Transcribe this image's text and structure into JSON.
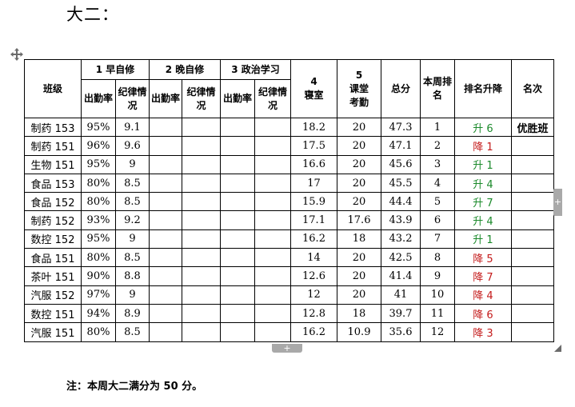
{
  "heading": "大二：",
  "headers": {
    "class": "班级",
    "group1": "1 早自修",
    "group2": "2 晚自修",
    "group3": "3 政治学习",
    "attendance_rate": "出勤率",
    "discipline": "纪律情况",
    "dorm": "4\n寝室",
    "classroom": "5\n课堂\n考勤",
    "total": "总分",
    "weekly_rank": "本周排名",
    "rank_change": "排名升降",
    "mingci": "名次"
  },
  "rows": [
    {
      "cls": "制药 153",
      "rate": "95%",
      "disc": "9.1",
      "dorm": "18.2",
      "classroom": "20",
      "total": "47.3",
      "rank": "1",
      "change": "升 6",
      "dir": "up",
      "mingci": "优胜班"
    },
    {
      "cls": "制药 151",
      "rate": "96%",
      "disc": "9.6",
      "dorm": "17.5",
      "classroom": "20",
      "total": "47.1",
      "rank": "2",
      "change": "降 1",
      "dir": "down",
      "mingci": ""
    },
    {
      "cls": "生物 151",
      "rate": "95%",
      "disc": "9",
      "dorm": "16.6",
      "classroom": "20",
      "total": "45.6",
      "rank": "3",
      "change": "升 1",
      "dir": "up",
      "mingci": ""
    },
    {
      "cls": "食品 153",
      "rate": "80%",
      "disc": "8.5",
      "dorm": "17",
      "classroom": "20",
      "total": "45.5",
      "rank": "4",
      "change": "升 4",
      "dir": "up",
      "mingci": ""
    },
    {
      "cls": "食品 152",
      "rate": "80%",
      "disc": "8.5",
      "dorm": "15.9",
      "classroom": "20",
      "total": "44.4",
      "rank": "5",
      "change": "升 7",
      "dir": "up",
      "mingci": ""
    },
    {
      "cls": "制药 152",
      "rate": "93%",
      "disc": "9.2",
      "dorm": "17.1",
      "classroom": "17.6",
      "total": "43.9",
      "rank": "6",
      "change": "升 4",
      "dir": "up",
      "mingci": ""
    },
    {
      "cls": "数控 152",
      "rate": "95%",
      "disc": "9",
      "dorm": "16.2",
      "classroom": "18",
      "total": "43.2",
      "rank": "7",
      "change": "升 1",
      "dir": "up",
      "mingci": ""
    },
    {
      "cls": "食品 151",
      "rate": "80%",
      "disc": "8.5",
      "dorm": "14",
      "classroom": "20",
      "total": "42.5",
      "rank": "8",
      "change": "降 5",
      "dir": "down",
      "mingci": ""
    },
    {
      "cls": "茶叶 151",
      "rate": "90%",
      "disc": "8.8",
      "dorm": "12.6",
      "classroom": "20",
      "total": "41.4",
      "rank": "9",
      "change": "降 7",
      "dir": "down",
      "mingci": ""
    },
    {
      "cls": "汽服 152",
      "rate": "97%",
      "disc": "9",
      "dorm": "12",
      "classroom": "20",
      "total": "41",
      "rank": "10",
      "change": "降 4",
      "dir": "down",
      "mingci": ""
    },
    {
      "cls": "数控 151",
      "rate": "94%",
      "disc": "8.9",
      "dorm": "12.8",
      "classroom": "18",
      "total": "39.7",
      "rank": "11",
      "change": "降 6",
      "dir": "down",
      "mingci": ""
    },
    {
      "cls": "汽服 151",
      "rate": "80%",
      "disc": "8.5",
      "dorm": "16.2",
      "classroom": "10.9",
      "total": "35.6",
      "rank": "12",
      "change": "降 3",
      "dir": "down",
      "mingci": ""
    }
  ],
  "note": "注：本周大二满分为 50 分。",
  "colors": {
    "up": "#1b8a2b",
    "down": "#c41b1b",
    "handle": "#a9a9a9"
  },
  "icons": {
    "table_move": "four-way-arrow-icon",
    "add_row": "plus-icon",
    "add_column": "plus-icon",
    "table_resize": "resize-corner-icon"
  }
}
